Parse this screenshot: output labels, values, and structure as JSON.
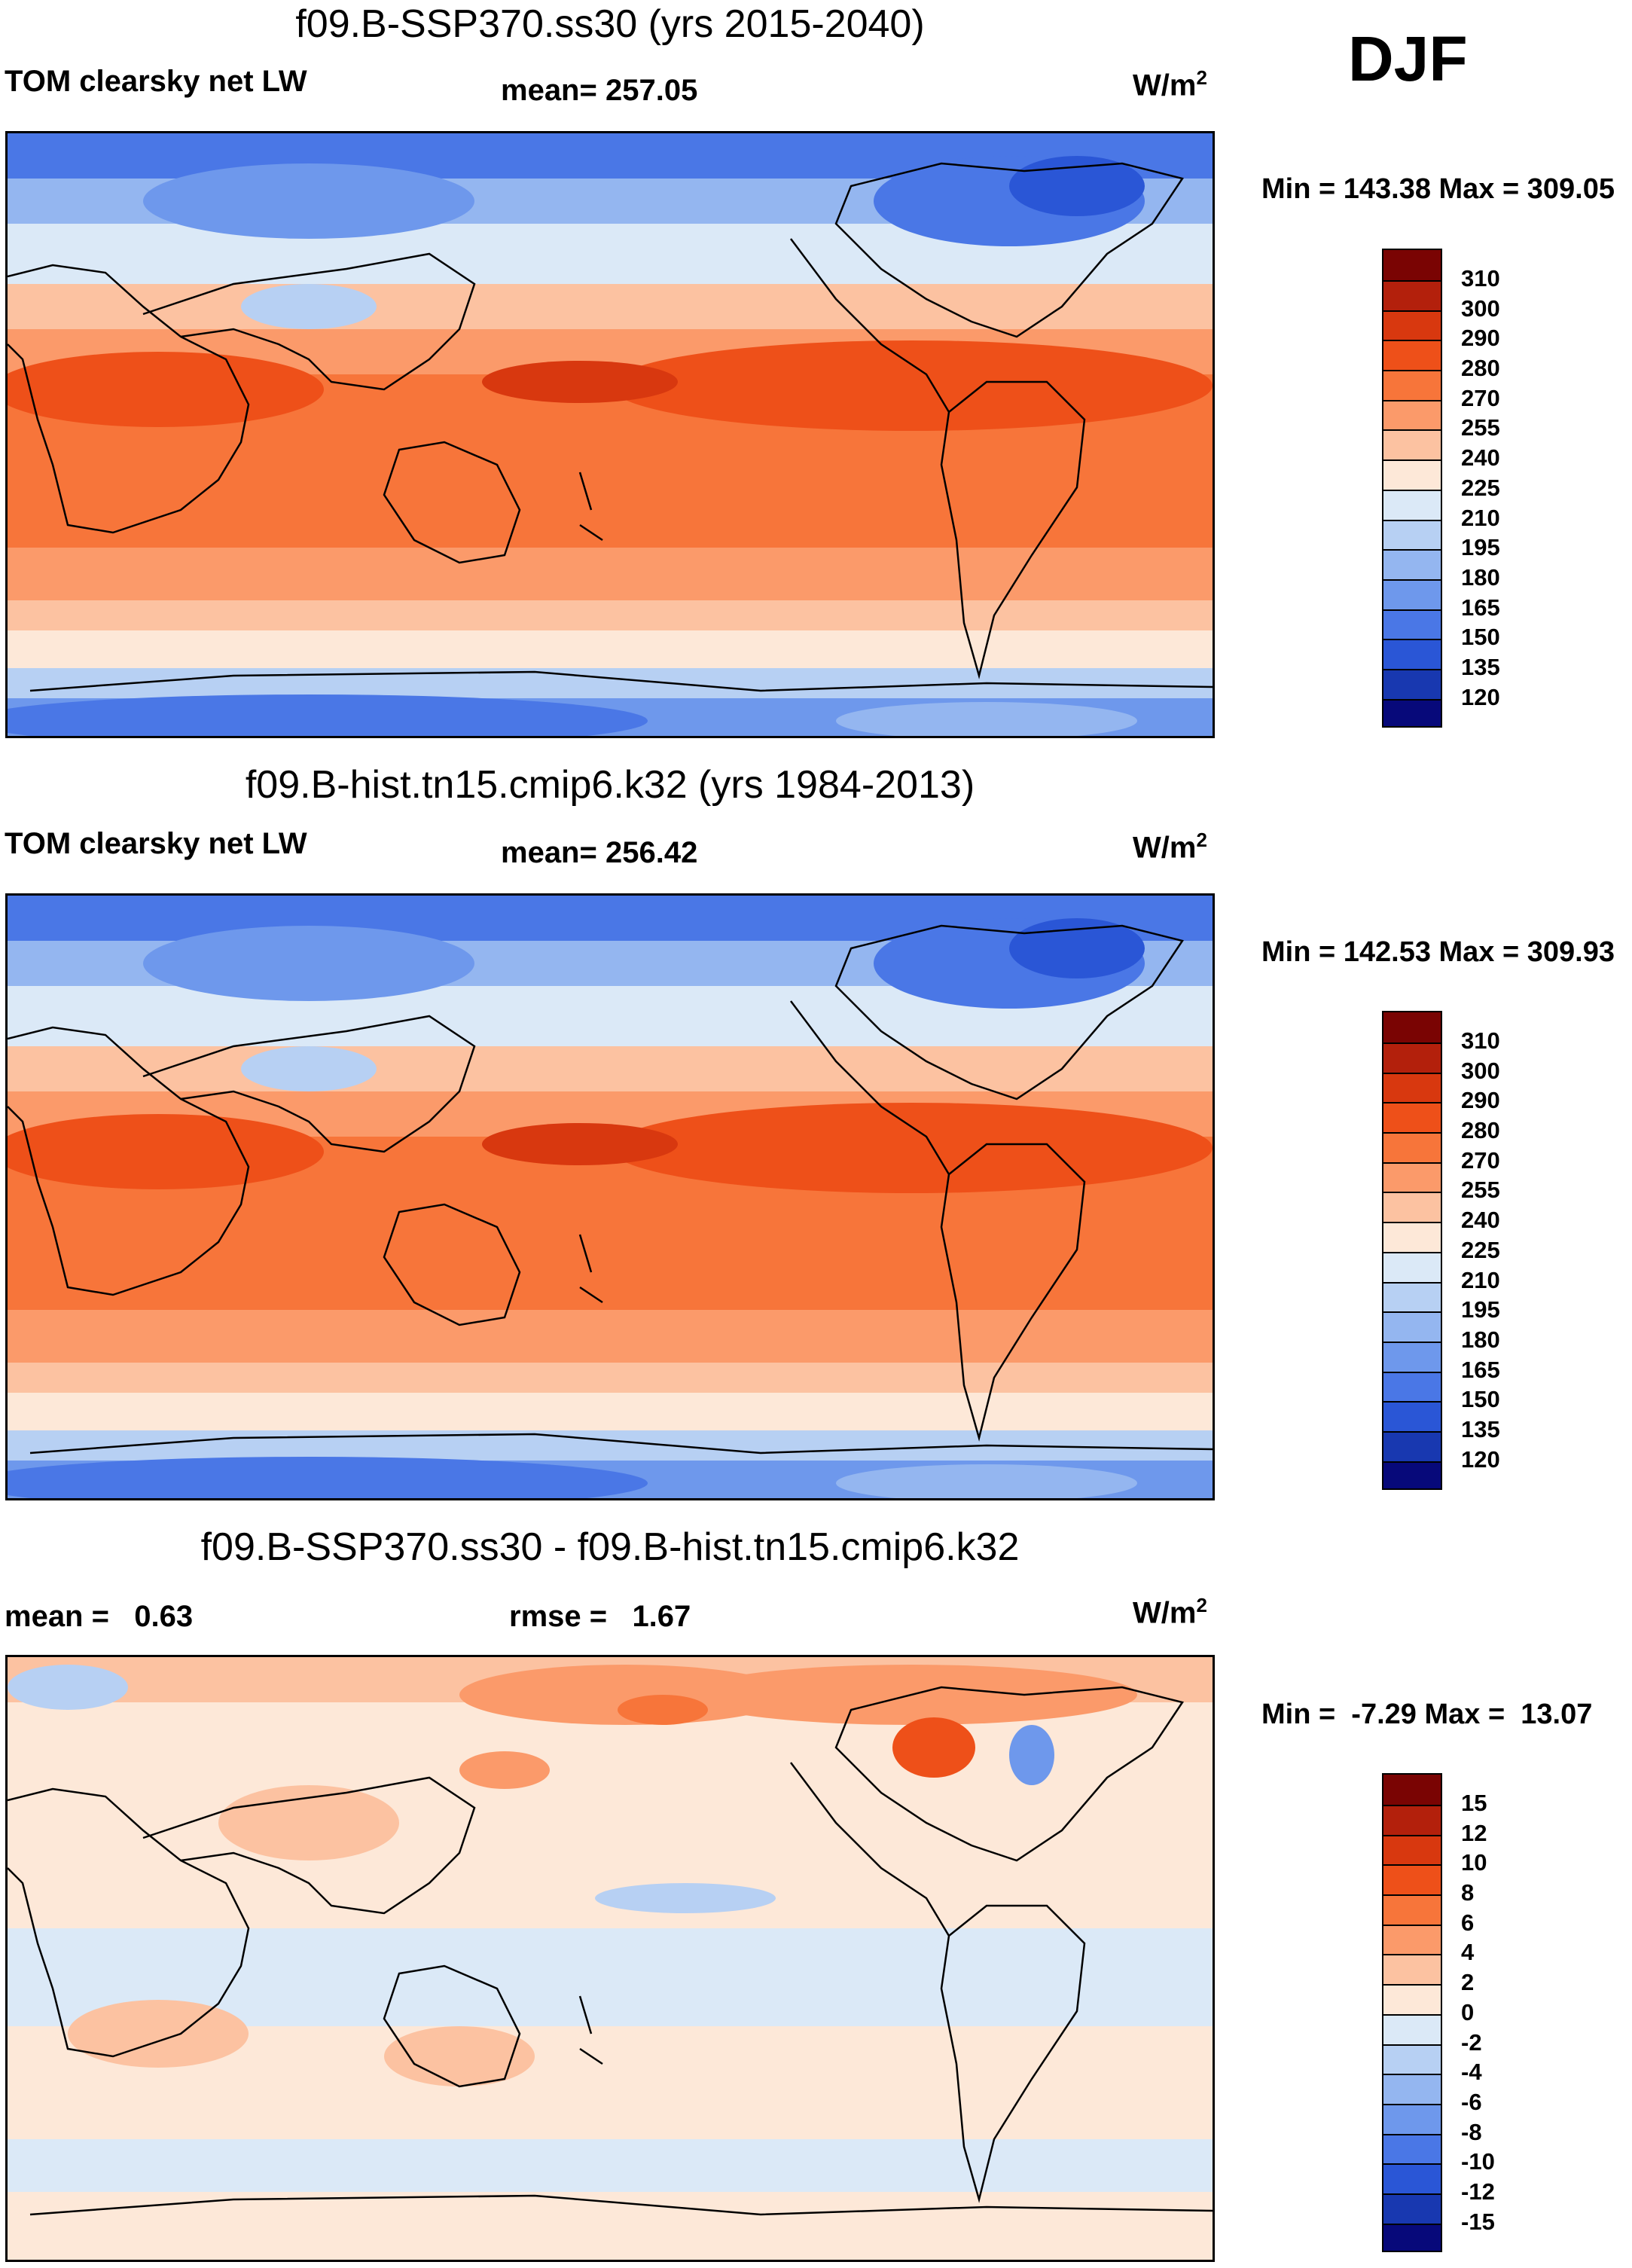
{
  "season": "DJF",
  "units": "W/m",
  "units_sup": "2",
  "panels": [
    {
      "title": "f09.B-SSP370.ss30 (yrs 2015-2040)",
      "variable": "TOM clearsky net LW",
      "stat1": "mean= 257.05",
      "stat2": "",
      "minmax": "Min = 143.38 Max = 309.05"
    },
    {
      "title": "f09.B-hist.tn15.cmip6.k32 (yrs 1984-2013)",
      "variable": "TOM clearsky net LW",
      "stat1": "mean= 256.42",
      "stat2": "",
      "minmax": "Min = 142.53 Max = 309.93"
    },
    {
      "title": "f09.B-SSP370.ss30 - f09.B-hist.tn15.cmip6.k32",
      "variable": "",
      "stat1": "mean =   0.63",
      "stat2": "rmse =   1.67",
      "minmax": "Min =  -7.29 Max =  13.07"
    }
  ],
  "colorbars": [
    {
      "labels": [
        "310",
        "300",
        "290",
        "280",
        "270",
        "255",
        "240",
        "225",
        "210",
        "195",
        "180",
        "165",
        "150",
        "135",
        "120"
      ],
      "colors": [
        "#7a0403",
        "#b3200c",
        "#d8380f",
        "#ee5019",
        "#f7753a",
        "#fb9a6a",
        "#fcc2a1",
        "#fde8d8",
        "#dbe9f7",
        "#b7d0f3",
        "#94b6f0",
        "#6e98ec",
        "#4a77e6",
        "#2a56d6",
        "#1838b0",
        "#07097a"
      ]
    },
    {
      "labels": [
        "310",
        "300",
        "290",
        "280",
        "270",
        "255",
        "240",
        "225",
        "210",
        "195",
        "180",
        "165",
        "150",
        "135",
        "120"
      ],
      "colors": [
        "#7a0403",
        "#b3200c",
        "#d8380f",
        "#ee5019",
        "#f7753a",
        "#fb9a6a",
        "#fcc2a1",
        "#fde8d8",
        "#dbe9f7",
        "#b7d0f3",
        "#94b6f0",
        "#6e98ec",
        "#4a77e6",
        "#2a56d6",
        "#1838b0",
        "#07097a"
      ]
    },
    {
      "labels": [
        "15",
        "12",
        "10",
        "8",
        "6",
        "4",
        "2",
        "0",
        "-2",
        "-4",
        "-6",
        "-8",
        "-10",
        "-12",
        "-15"
      ],
      "colors": [
        "#7a0403",
        "#b3200c",
        "#d8380f",
        "#ee5019",
        "#f7753a",
        "#fb9a6a",
        "#fcc2a1",
        "#fde8d8",
        "#dbe9f7",
        "#b7d0f3",
        "#94b6f0",
        "#6e98ec",
        "#4a77e6",
        "#2a56d6",
        "#1838b0",
        "#07097a"
      ]
    }
  ],
  "chart_data": [
    {
      "type": "heatmap",
      "title": "f09.B-SSP370.ss30 (yrs 2015-2040)",
      "variable": "TOM clearsky net LW",
      "season": "DJF",
      "units": "W/m^2",
      "mean": 257.05,
      "min": 143.38,
      "max": 309.05,
      "levels": [
        120,
        135,
        150,
        165,
        180,
        195,
        210,
        225,
        240,
        255,
        270,
        280,
        290,
        300,
        310
      ]
    },
    {
      "type": "heatmap",
      "title": "f09.B-hist.tn15.cmip6.k32 (yrs 1984-2013)",
      "variable": "TOM clearsky net LW",
      "season": "DJF",
      "units": "W/m^2",
      "mean": 256.42,
      "min": 142.53,
      "max": 309.93,
      "levels": [
        120,
        135,
        150,
        165,
        180,
        195,
        210,
        225,
        240,
        255,
        270,
        280,
        290,
        300,
        310
      ]
    },
    {
      "type": "heatmap",
      "title": "f09.B-SSP370.ss30 - f09.B-hist.tn15.cmip6.k32",
      "season": "DJF",
      "units": "W/m^2",
      "mean": 0.63,
      "rmse": 1.67,
      "min": -7.29,
      "max": 13.07,
      "levels": [
        -15,
        -12,
        -10,
        -8,
        -6,
        -4,
        -2,
        0,
        2,
        4,
        6,
        8,
        10,
        12,
        15
      ]
    }
  ]
}
